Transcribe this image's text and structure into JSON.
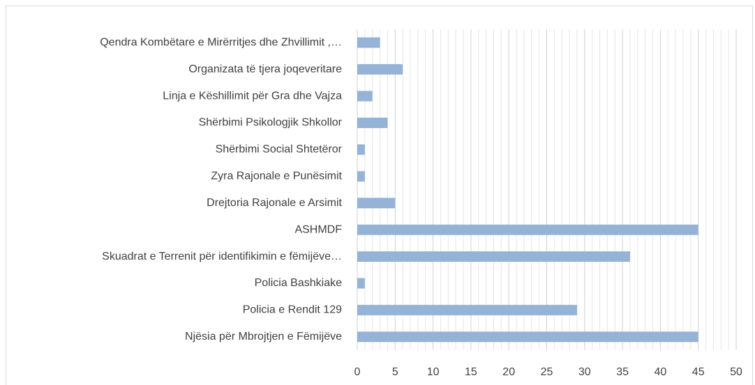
{
  "chart_data": {
    "type": "barh",
    "categories": [
      "Qendra Kombëtare e Mirërritjes dhe Zhvillimit ,…",
      "Organizata të tjera joqeveritare",
      "Linja e Këshillimit për Gra dhe Vajza",
      "Shërbimi Psikologjik Shkollor",
      "Shërbimi Social Shtetëror",
      "Zyra Rajonale e Punësimit",
      "Drejtoria Rajonale e Arsimit",
      "ASHMDF",
      "Skuadrat e Terrenit për identifikimin e fëmijëve…",
      "Policia Bashkiake",
      "Policia e Rendit  129",
      "Njësia për Mbrojtjen e Fëmijëve"
    ],
    "values": [
      3,
      6,
      2,
      4,
      1,
      1,
      5,
      45,
      36,
      1,
      29,
      45
    ],
    "color": "#95b3d7",
    "xlim": [
      0,
      50
    ],
    "xticks": [
      0,
      5,
      10,
      15,
      20,
      25,
      30,
      35,
      40,
      45,
      50
    ],
    "minor_xticks": [
      1,
      2,
      3,
      4,
      6,
      7,
      8,
      9,
      11,
      12,
      13,
      14,
      16,
      17,
      18,
      19,
      21,
      22,
      23,
      24,
      26,
      27,
      28,
      29,
      31,
      32,
      33,
      34,
      36,
      37,
      38,
      39,
      41,
      42,
      43,
      44,
      46,
      47,
      48,
      49
    ],
    "grid": true
  }
}
